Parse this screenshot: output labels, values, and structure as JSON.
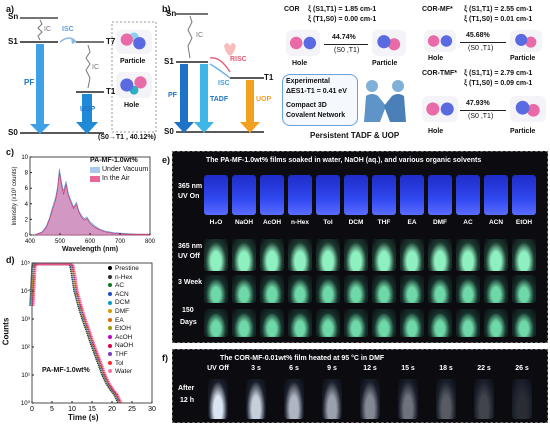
{
  "colors": {
    "blue": "#1e73c8",
    "cyan": "#3fb6e8",
    "orange": "#f2a020",
    "pink": "#e8679a",
    "red": "#e2506c",
    "gray": "#8a8a8a"
  },
  "panel_a": {
    "label": "a)",
    "levels": {
      "sn": "Sn",
      "s1": "S1",
      "t7": "T7",
      "t1": "T1",
      "s0": "S0"
    },
    "arrows": {
      "isc": "ISC",
      "ic1": "IC",
      "ic2": "IC",
      "pf": "PF",
      "uop": "UOP"
    },
    "particle": "Particle",
    "hole": "Hole",
    "transition": "(S0→T1 , 40.12%)"
  },
  "panel_b": {
    "label": "b)",
    "levels": {
      "sn": "Sn",
      "s1": "S1",
      "t1": "T1",
      "s0": "S0"
    },
    "arrows": {
      "ic": "IC",
      "isc": "ISC",
      "risc": "RISC",
      "pf": "PF",
      "tadf": "TADF",
      "uop": "UOP"
    },
    "cor": {
      "title": "COR",
      "xi_s1t1": "ξ (S1,T1) = 1.85 cm-1",
      "xi_t1s0": "ξ (T1,S0) = 0.00 cm-1",
      "pct": "44.74%",
      "pair": "(S0 ,T1)",
      "hole": "Hole",
      "particle": "Particle"
    },
    "cor_mf": {
      "title": "COR-MF*",
      "xi_s1t1": "ξ (S1,T1) = 2.55 cm-1",
      "xi_t1s0": "ξ (T1,S0) = 0.01 cm-1",
      "pct": "45.68%",
      "pair": "(S0 ,T1)",
      "hole": "Hole",
      "particle": "Particle"
    },
    "cor_tmf": {
      "title": "COR-TMF*",
      "xi_s1t1": "ξ (S1,T1) = 2.79 cm-1",
      "xi_t1s0": "ξ (T1,S0) = 0.09 cm-1",
      "pct": "47.93%",
      "pair": "(S0 ,T1)",
      "hole": "Hole",
      "particle": "Particle"
    },
    "experimental": "Experimental",
    "delta_e": "ΔES1-T1 = 0.41 eV",
    "compact": "Compact 3D",
    "covalent": "Covalent Network",
    "persistent": "Persistent TADF & UOP"
  },
  "panel_c": {
    "label": "c)",
    "legend_title": "PA-MF-1.0wt%",
    "chart_data": {
      "type": "area",
      "xlabel": "Wavelength (nm)",
      "ylabel": "Intensity (x10³ counts)",
      "xlim": [
        400,
        800
      ],
      "ylim": [
        0,
        10
      ],
      "xticks": [
        "400",
        "500",
        "600",
        "700",
        "800"
      ],
      "yticks": [
        "0",
        "2",
        "4",
        "6",
        "8",
        "10"
      ],
      "x": [
        420,
        440,
        455,
        465,
        475,
        485,
        492,
        498,
        505,
        512,
        520,
        528,
        535,
        545,
        555,
        562,
        570,
        580,
        590,
        600,
        615,
        630,
        650,
        680,
        720,
        760,
        800
      ],
      "series": [
        {
          "name": "Under Vacuum",
          "values": [
            0.1,
            0.4,
            1.2,
            2.2,
            3.6,
            4.8,
            6.2,
            8.5,
            6.8,
            5.6,
            6.9,
            5.3,
            4.6,
            3.6,
            4.2,
            3.2,
            2.6,
            2.1,
            2.3,
            1.7,
            1.2,
            0.8,
            0.5,
            0.3,
            0.2,
            0.1,
            0.1
          ]
        },
        {
          "name": "In the Air",
          "values": [
            0.1,
            0.3,
            1.0,
            2.0,
            3.2,
            4.4,
            5.8,
            8.0,
            6.4,
            5.2,
            6.5,
            5.0,
            4.3,
            3.4,
            3.9,
            3.0,
            2.4,
            1.9,
            2.1,
            1.5,
            1.0,
            0.7,
            0.4,
            0.2,
            0.1,
            0.1,
            0.1
          ]
        }
      ]
    }
  },
  "panel_d": {
    "label": "d)",
    "inner_label": "PA-MF-1.0wt%",
    "chart_data": {
      "type": "scatter",
      "xlabel": "Time (s)",
      "ylabel": "Counts",
      "xlim": [
        0,
        30
      ],
      "ylim_log": [
        1,
        100000
      ],
      "xticks": [
        "0",
        "5",
        "10",
        "15",
        "20",
        "25",
        "30"
      ],
      "yticks": [
        "10⁰",
        "10¹",
        "10²",
        "10³",
        "10⁴",
        "10⁵"
      ],
      "series": [
        {
          "name": "Prestine",
          "color": "#000000"
        },
        {
          "name": "n-Hex",
          "color": "#333333"
        },
        {
          "name": "AC",
          "color": "#0b7a1e"
        },
        {
          "name": "ACN",
          "color": "#1f4fc9"
        },
        {
          "name": "DCM",
          "color": "#00a0c8"
        },
        {
          "name": "DMF",
          "color": "#d4a000"
        },
        {
          "name": "EA",
          "color": "#e06a00"
        },
        {
          "name": "EtOH",
          "color": "#9b9b00"
        },
        {
          "name": "AcOH",
          "color": "#c400c4"
        },
        {
          "name": "NaOH",
          "color": "#e0004a"
        },
        {
          "name": "THF",
          "color": "#7a3fbf"
        },
        {
          "name": "Tol",
          "color": "#ff2a2a"
        },
        {
          "name": "Water",
          "color": "#ff6fa0"
        }
      ],
      "profile_x": [
        0,
        0.5,
        1,
        2,
        4,
        6,
        8,
        9.5,
        10,
        10.5,
        11,
        12,
        13,
        14,
        15,
        16,
        17,
        18,
        19,
        20,
        21,
        22
      ],
      "profile_y": [
        3000,
        80000,
        90000,
        90000,
        90000,
        90000,
        90000,
        90000,
        80000,
        30000,
        10000,
        3000,
        1000,
        400,
        150,
        60,
        25,
        10,
        5,
        3,
        2,
        1
      ]
    }
  },
  "panel_e": {
    "label": "e)",
    "title": "The PA-MF-1.0wt% films soaked in water, NaOH (aq.), and various organic solvents",
    "row_labels": {
      "uv_on_1": "365 nm",
      "uv_on_2": "UV On",
      "uv_off_1": "365 nm",
      "uv_off_2": "UV Off",
      "week_1": "3 Week",
      "days_1": "150",
      "days_2": "Days"
    },
    "solvents": [
      "H₂O",
      "NaOH",
      "AcOH",
      "n-Hex",
      "Tol",
      "DCM",
      "THF",
      "EA",
      "DMF",
      "AC",
      "ACN",
      "EtOH"
    ]
  },
  "panel_f": {
    "label": "f)",
    "title": "The COR-MF-0.01wt% film heated at 95 °C in DMF",
    "times": [
      "UV Off",
      "3 s",
      "6 s",
      "9 s",
      "12 s",
      "15 s",
      "18 s",
      "22 s",
      "26 s"
    ],
    "after": "After",
    "hours": "12 h"
  }
}
